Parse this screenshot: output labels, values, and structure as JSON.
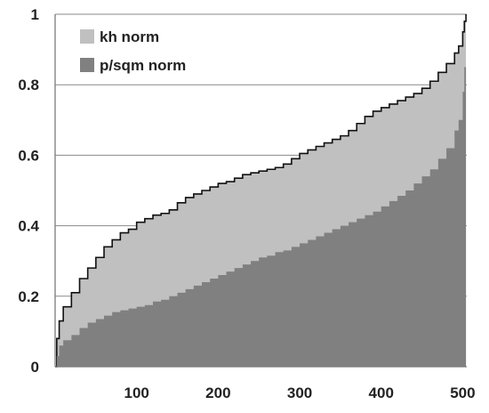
{
  "chart_data": {
    "type": "area",
    "title": "",
    "xlabel": "",
    "ylabel": "",
    "xlim": [
      0,
      505
    ],
    "ylim": [
      0,
      1
    ],
    "x_ticks": [
      100,
      200,
      300,
      400,
      500
    ],
    "x_tick_labels": [
      "100",
      "200",
      "300",
      "400",
      "500"
    ],
    "y_ticks": [
      0,
      0.2,
      0.4,
      0.6,
      0.8,
      1
    ],
    "y_tick_labels": [
      "0",
      "0.2",
      "0.4",
      "0.6",
      "0.8",
      "1"
    ],
    "grid": "horizontal",
    "legend_position": "top-left",
    "x": [
      0,
      2,
      5,
      10,
      20,
      30,
      40,
      50,
      60,
      70,
      80,
      90,
      100,
      110,
      120,
      130,
      140,
      150,
      160,
      170,
      180,
      190,
      200,
      210,
      220,
      230,
      240,
      250,
      260,
      270,
      280,
      290,
      300,
      310,
      320,
      330,
      340,
      350,
      360,
      370,
      380,
      390,
      400,
      410,
      420,
      430,
      440,
      450,
      460,
      470,
      480,
      490,
      495,
      500,
      502,
      504
    ],
    "series": [
      {
        "name": "kh norm",
        "color": "#c0c0c0",
        "values": [
          0.0,
          0.08,
          0.13,
          0.17,
          0.21,
          0.25,
          0.28,
          0.31,
          0.34,
          0.36,
          0.38,
          0.39,
          0.41,
          0.42,
          0.43,
          0.435,
          0.445,
          0.465,
          0.48,
          0.49,
          0.5,
          0.51,
          0.52,
          0.525,
          0.535,
          0.545,
          0.55,
          0.555,
          0.56,
          0.565,
          0.575,
          0.59,
          0.605,
          0.615,
          0.625,
          0.635,
          0.645,
          0.655,
          0.67,
          0.69,
          0.71,
          0.725,
          0.735,
          0.745,
          0.755,
          0.765,
          0.775,
          0.79,
          0.81,
          0.835,
          0.86,
          0.89,
          0.91,
          0.95,
          0.98,
          1.0
        ]
      },
      {
        "name": "p/sqm norm",
        "color": "#808080",
        "values": [
          0.0,
          0.03,
          0.06,
          0.075,
          0.09,
          0.11,
          0.125,
          0.135,
          0.145,
          0.155,
          0.16,
          0.165,
          0.17,
          0.175,
          0.185,
          0.19,
          0.2,
          0.21,
          0.22,
          0.23,
          0.24,
          0.25,
          0.26,
          0.27,
          0.28,
          0.29,
          0.3,
          0.31,
          0.315,
          0.325,
          0.33,
          0.34,
          0.35,
          0.36,
          0.37,
          0.38,
          0.39,
          0.4,
          0.41,
          0.42,
          0.43,
          0.44,
          0.455,
          0.47,
          0.485,
          0.5,
          0.52,
          0.54,
          0.56,
          0.59,
          0.62,
          0.67,
          0.7,
          0.78,
          0.85,
          0.92
        ]
      }
    ]
  }
}
